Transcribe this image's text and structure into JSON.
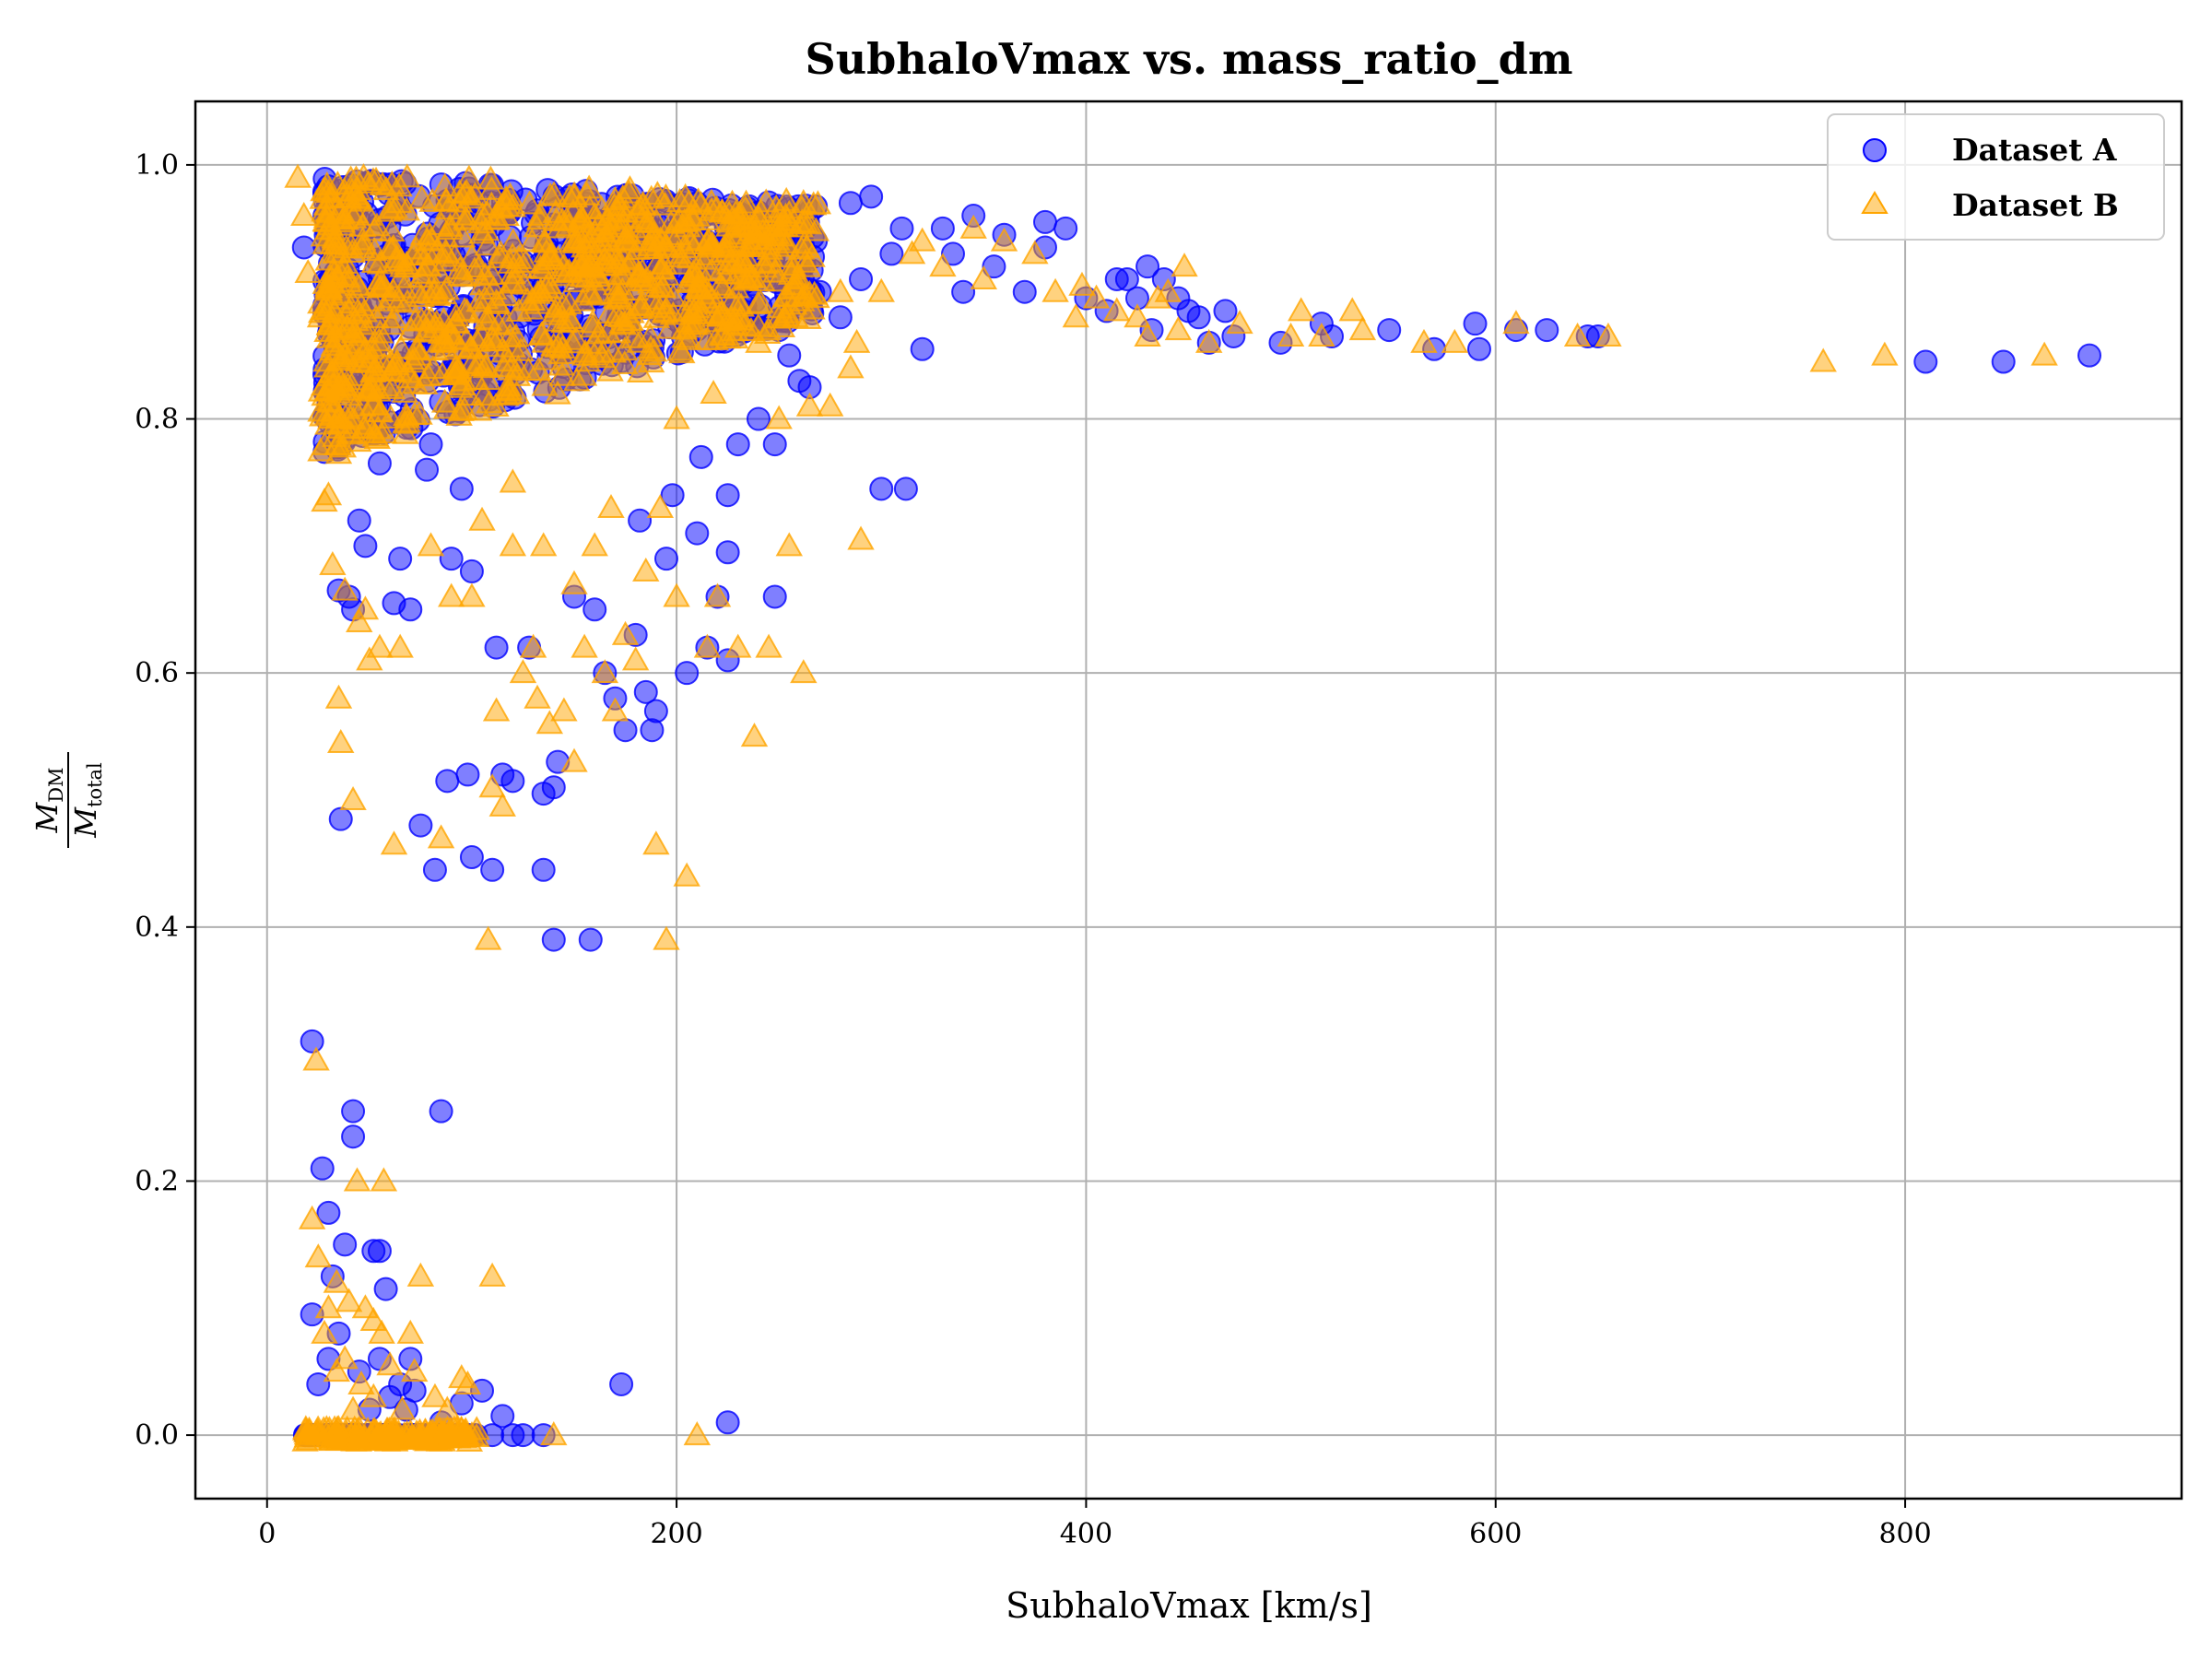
{
  "chart_data": {
    "type": "scatter",
    "title": "SubhaloVmax vs. mass_ratio_dm",
    "xlabel": "SubhaloVmax [km/s]",
    "ylabel": {
      "numerator": "M",
      "numerator_sub": "DM",
      "denominator": "M",
      "denominator_sub": "total"
    },
    "xlim": [
      -35,
      935
    ],
    "ylim": [
      -0.05,
      1.05
    ],
    "xticks": [
      0,
      200,
      400,
      600,
      800
    ],
    "xtick_labels": [
      "0",
      "200",
      "400",
      "600",
      "800"
    ],
    "yticks": [
      0.0,
      0.2,
      0.4,
      0.6,
      0.8,
      1.0
    ],
    "ytick_labels": [
      "0.0",
      "0.2",
      "0.4",
      "0.6",
      "0.8",
      "1.0"
    ],
    "grid": true,
    "legend_position": "top-right",
    "series": [
      {
        "name": "Dataset A",
        "marker": "circle",
        "color": "#0000ff",
        "points": [
          [
            18,
            0.935
          ],
          [
            22,
            0.31
          ],
          [
            22,
            0.095
          ],
          [
            27,
            0.21
          ],
          [
            30,
            0.175
          ],
          [
            28,
            0.835
          ],
          [
            32,
            0.125
          ],
          [
            34,
            0.79
          ],
          [
            35,
            0.665
          ],
          [
            36,
            0.485
          ],
          [
            38,
            0.15
          ],
          [
            40,
            0.66
          ],
          [
            42,
            0.65
          ],
          [
            42,
            0.255
          ],
          [
            42,
            0.235
          ],
          [
            45,
            0.72
          ],
          [
            48,
            0.7
          ],
          [
            52,
            0.145
          ],
          [
            55,
            0.145
          ],
          [
            55,
            0.765
          ],
          [
            58,
            0.115
          ],
          [
            62,
            0.655
          ],
          [
            65,
            0.69
          ],
          [
            70,
            0.06
          ],
          [
            70,
            0.65
          ],
          [
            75,
            0.48
          ],
          [
            78,
            0.76
          ],
          [
            80,
            0.78
          ],
          [
            82,
            0.445
          ],
          [
            85,
            0.255
          ],
          [
            88,
            0.515
          ],
          [
            90,
            0.69
          ],
          [
            95,
            0.745
          ],
          [
            98,
            0.52
          ],
          [
            100,
            0.455
          ],
          [
            100,
            0.68
          ],
          [
            110,
            0.445
          ],
          [
            112,
            0.62
          ],
          [
            115,
            0.52
          ],
          [
            120,
            0.515
          ],
          [
            135,
            0.445
          ],
          [
            135,
            0.505
          ],
          [
            140,
            0.39
          ],
          [
            142,
            0.53
          ],
          [
            158,
            0.39
          ],
          [
            160,
            0.65
          ],
          [
            165,
            0.6
          ],
          [
            173,
            0.04
          ],
          [
            175,
            0.555
          ],
          [
            180,
            0.63
          ],
          [
            185,
            0.585
          ],
          [
            188,
            0.555
          ],
          [
            190,
            0.57
          ],
          [
            195,
            0.69
          ],
          [
            205,
            0.6
          ],
          [
            210,
            0.71
          ],
          [
            215,
            0.62
          ],
          [
            220,
            0.66
          ],
          [
            225,
            0.01
          ],
          [
            225,
            0.61
          ],
          [
            225,
            0.74
          ],
          [
            225,
            0.695
          ],
          [
            230,
            0.78
          ],
          [
            240,
            0.8
          ],
          [
            248,
            0.78
          ],
          [
            248,
            0.66
          ],
          [
            255,
            0.85
          ],
          [
            260,
            0.83
          ],
          [
            265,
            0.825
          ],
          [
            270,
            0.9
          ],
          [
            280,
            0.88
          ],
          [
            285,
            0.97
          ],
          [
            290,
            0.91
          ],
          [
            295,
            0.975
          ],
          [
            300,
            0.745
          ],
          [
            305,
            0.93
          ],
          [
            312,
            0.745
          ],
          [
            320,
            0.855
          ],
          [
            330,
            0.95
          ],
          [
            340,
            0.9
          ],
          [
            345,
            0.96
          ],
          [
            360,
            0.945
          ],
          [
            370,
            0.9
          ],
          [
            380,
            0.955
          ],
          [
            380,
            0.935
          ],
          [
            390,
            0.95
          ],
          [
            400,
            0.895
          ],
          [
            410,
            0.885
          ],
          [
            415,
            0.91
          ],
          [
            420,
            0.91
          ],
          [
            425,
            0.895
          ],
          [
            430,
            0.92
          ],
          [
            432,
            0.87
          ],
          [
            438,
            0.91
          ],
          [
            445,
            0.895
          ],
          [
            450,
            0.885
          ],
          [
            455,
            0.88
          ],
          [
            460,
            0.86
          ],
          [
            468,
            0.885
          ],
          [
            472,
            0.865
          ],
          [
            495,
            0.86
          ],
          [
            515,
            0.875
          ],
          [
            520,
            0.865
          ],
          [
            548,
            0.87
          ],
          [
            570,
            0.855
          ],
          [
            590,
            0.875
          ],
          [
            592,
            0.855
          ],
          [
            610,
            0.87
          ],
          [
            625,
            0.87
          ],
          [
            645,
            0.865
          ],
          [
            650,
            0.865
          ],
          [
            810,
            0.845
          ],
          [
            848,
            0.845
          ],
          [
            890,
            0.85
          ],
          [
            110,
            0.0
          ],
          [
            115,
            0.015
          ],
          [
            120,
            0.0
          ],
          [
            125,
            0.0
          ],
          [
            135,
            0.0
          ],
          [
            105,
            0.035
          ],
          [
            95,
            0.025
          ],
          [
            85,
            0.01
          ],
          [
            60,
            0.03
          ],
          [
            50,
            0.02
          ],
          [
            45,
            0.05
          ],
          [
            35,
            0.08
          ],
          [
            30,
            0.06
          ],
          [
            25,
            0.04
          ],
          [
            20,
            0.0
          ],
          [
            55,
            0.06
          ],
          [
            65,
            0.04
          ],
          [
            72,
            0.035
          ],
          [
            68,
            0.02
          ],
          [
            58,
            0.0
          ],
          [
            40,
            0.0
          ],
          [
            30,
            0.0
          ],
          [
            140,
            0.51
          ],
          [
            128,
            0.62
          ],
          [
            150,
            0.66
          ],
          [
            170,
            0.58
          ],
          [
            182,
            0.72
          ],
          [
            198,
            0.74
          ],
          [
            212,
            0.77
          ],
          [
            235,
            0.88
          ],
          [
            250,
            0.87
          ],
          [
            268,
            0.94
          ],
          [
            310,
            0.95
          ],
          [
            335,
            0.93
          ],
          [
            355,
            0.92
          ]
        ]
      },
      {
        "name": "Dataset B",
        "marker": "triangle",
        "color": "#ffa500",
        "points": [
          [
            15,
            0.99
          ],
          [
            18,
            0.96
          ],
          [
            20,
            0.915
          ],
          [
            22,
            0.17
          ],
          [
            24,
            0.295
          ],
          [
            25,
            0.14
          ],
          [
            26,
            0.88
          ],
          [
            28,
            0.735
          ],
          [
            30,
            0.74
          ],
          [
            32,
            0.685
          ],
          [
            34,
            0.12
          ],
          [
            35,
            0.58
          ],
          [
            36,
            0.545
          ],
          [
            38,
            0.665
          ],
          [
            40,
            0.105
          ],
          [
            42,
            0.5
          ],
          [
            44,
            0.2
          ],
          [
            45,
            0.64
          ],
          [
            48,
            0.65
          ],
          [
            50,
            0.61
          ],
          [
            52,
            0.09
          ],
          [
            55,
            0.62
          ],
          [
            57,
            0.2
          ],
          [
            60,
            0.055
          ],
          [
            62,
            0.465
          ],
          [
            65,
            0.62
          ],
          [
            70,
            0.08
          ],
          [
            75,
            0.125
          ],
          [
            80,
            0.7
          ],
          [
            85,
            0.47
          ],
          [
            90,
            0.66
          ],
          [
            95,
            0.045
          ],
          [
            100,
            0.66
          ],
          [
            105,
            0.72
          ],
          [
            108,
            0.39
          ],
          [
            110,
            0.51
          ],
          [
            110,
            0.125
          ],
          [
            112,
            0.57
          ],
          [
            115,
            0.495
          ],
          [
            120,
            0.7
          ],
          [
            125,
            0.6
          ],
          [
            130,
            0.62
          ],
          [
            132,
            0.58
          ],
          [
            138,
            0.56
          ],
          [
            140,
            0.0
          ],
          [
            145,
            0.57
          ],
          [
            150,
            0.53
          ],
          [
            155,
            0.62
          ],
          [
            160,
            0.7
          ],
          [
            165,
            0.6
          ],
          [
            170,
            0.57
          ],
          [
            175,
            0.63
          ],
          [
            180,
            0.61
          ],
          [
            190,
            0.465
          ],
          [
            192,
            0.73
          ],
          [
            195,
            0.39
          ],
          [
            200,
            0.66
          ],
          [
            205,
            0.44
          ],
          [
            210,
            0.0
          ],
          [
            215,
            0.62
          ],
          [
            220,
            0.66
          ],
          [
            230,
            0.62
          ],
          [
            238,
            0.55
          ],
          [
            245,
            0.62
          ],
          [
            250,
            0.8
          ],
          [
            255,
            0.7
          ],
          [
            262,
            0.6
          ],
          [
            265,
            0.81
          ],
          [
            275,
            0.81
          ],
          [
            285,
            0.84
          ],
          [
            288,
            0.86
          ],
          [
            290,
            0.705
          ],
          [
            300,
            0.9
          ],
          [
            315,
            0.93
          ],
          [
            330,
            0.92
          ],
          [
            345,
            0.95
          ],
          [
            360,
            0.94
          ],
          [
            375,
            0.93
          ],
          [
            385,
            0.9
          ],
          [
            395,
            0.88
          ],
          [
            398,
            0.905
          ],
          [
            405,
            0.895
          ],
          [
            415,
            0.885
          ],
          [
            425,
            0.88
          ],
          [
            430,
            0.865
          ],
          [
            435,
            0.895
          ],
          [
            440,
            0.9
          ],
          [
            445,
            0.87
          ],
          [
            448,
            0.92
          ],
          [
            460,
            0.86
          ],
          [
            475,
            0.875
          ],
          [
            500,
            0.865
          ],
          [
            505,
            0.885
          ],
          [
            515,
            0.865
          ],
          [
            530,
            0.885
          ],
          [
            535,
            0.87
          ],
          [
            565,
            0.86
          ],
          [
            580,
            0.86
          ],
          [
            610,
            0.875
          ],
          [
            640,
            0.865
          ],
          [
            655,
            0.865
          ],
          [
            760,
            0.845
          ],
          [
            790,
            0.85
          ],
          [
            868,
            0.85
          ],
          [
            20,
            0.0
          ],
          [
            25,
            0.0
          ],
          [
            35,
            0.0
          ],
          [
            45,
            0.0
          ],
          [
            60,
            0.0
          ],
          [
            75,
            0.0
          ],
          [
            90,
            0.0
          ],
          [
            100,
            0.0
          ],
          [
            30,
            0.1
          ],
          [
            38,
            0.06
          ],
          [
            46,
            0.04
          ],
          [
            52,
            0.03
          ],
          [
            66,
            0.02
          ],
          [
            82,
            0.03
          ],
          [
            98,
            0.04
          ],
          [
            28,
            0.08
          ],
          [
            34,
            0.05
          ],
          [
            42,
            0.02
          ],
          [
            48,
            0.1
          ],
          [
            56,
            0.08
          ],
          [
            72,
            0.05
          ],
          [
            88,
            0.02
          ],
          [
            120,
            0.75
          ],
          [
            135,
            0.7
          ],
          [
            150,
            0.67
          ],
          [
            168,
            0.73
          ],
          [
            185,
            0.68
          ],
          [
            200,
            0.8
          ],
          [
            218,
            0.82
          ],
          [
            240,
            0.86
          ],
          [
            258,
            0.88
          ],
          [
            280,
            0.9
          ],
          [
            320,
            0.94
          ],
          [
            350,
            0.91
          ]
        ]
      }
    ]
  }
}
